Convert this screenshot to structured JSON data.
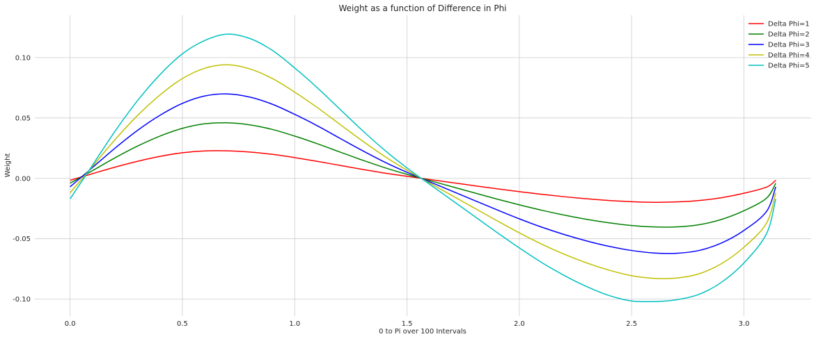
{
  "chart_data": {
    "type": "line",
    "title": "Weight as a function of Difference in Phi",
    "xlabel": "0 to Pi over 100 Intervals",
    "ylabel": "Weight",
    "xlim": [
      -0.157,
      3.299
    ],
    "ylim": [
      -0.114,
      0.135
    ],
    "xticks": [
      0.0,
      0.5,
      1.0,
      1.5,
      2.0,
      2.5,
      3.0
    ],
    "xtick_labels": [
      "0.0",
      "0.5",
      "1.0",
      "1.5",
      "2.0",
      "2.5",
      "3.0"
    ],
    "yticks": [
      -0.1,
      -0.05,
      0.0,
      0.05,
      0.1
    ],
    "ytick_labels": [
      "-0.10",
      "-0.05",
      "0.00",
      "0.05",
      "0.10"
    ],
    "grid": true,
    "legend_position": "top-right",
    "x": [
      0.0,
      0.1,
      0.2,
      0.3,
      0.4,
      0.5,
      0.6,
      0.7,
      0.8,
      0.9,
      1.0,
      1.1,
      1.2,
      1.3,
      1.4,
      1.5,
      1.6,
      1.7,
      1.8,
      1.9,
      2.0,
      2.1,
      2.2,
      2.3,
      2.4,
      2.5,
      2.6,
      2.7,
      2.8,
      2.9,
      3.0,
      3.1,
      3.1416
    ],
    "series": [
      {
        "name": "Delta Phi=1",
        "color": "#ff0000",
        "values": [
          -0.0016,
          0.0039,
          0.0093,
          0.0141,
          0.0182,
          0.0212,
          0.0227,
          0.0228,
          0.0218,
          0.0199,
          0.0172,
          0.0141,
          0.0108,
          0.0075,
          0.0044,
          0.0017,
          -0.0009,
          -0.0035,
          -0.0061,
          -0.0086,
          -0.011,
          -0.0132,
          -0.0152,
          -0.0169,
          -0.0183,
          -0.0193,
          -0.0198,
          -0.0195,
          -0.0183,
          -0.016,
          -0.0123,
          -0.0073,
          -0.0016
        ]
      },
      {
        "name": "Delta Phi=2",
        "color": "#008000",
        "values": [
          -0.004,
          0.0064,
          0.017,
          0.0267,
          0.035,
          0.0414,
          0.0452,
          0.046,
          0.0443,
          0.0405,
          0.035,
          0.0287,
          0.0219,
          0.0152,
          0.0089,
          0.0033,
          -0.0018,
          -0.0069,
          -0.012,
          -0.0171,
          -0.0219,
          -0.0264,
          -0.0304,
          -0.0339,
          -0.0368,
          -0.039,
          -0.0402,
          -0.0402,
          -0.0384,
          -0.034,
          -0.0268,
          -0.0165,
          -0.004
        ]
      },
      {
        "name": "Delta Phi=3",
        "color": "#0000ff",
        "values": [
          -0.007,
          0.009,
          0.025,
          0.0397,
          0.0522,
          0.0621,
          0.0682,
          0.0699,
          0.0673,
          0.0614,
          0.053,
          0.0436,
          0.0333,
          0.0231,
          0.0135,
          0.005,
          -0.0028,
          -0.0105,
          -0.0183,
          -0.026,
          -0.0335,
          -0.0404,
          -0.0465,
          -0.0518,
          -0.0563,
          -0.0597,
          -0.0618,
          -0.062,
          -0.0597,
          -0.0535,
          -0.0431,
          -0.0275,
          -0.007
        ]
      },
      {
        "name": "Delta Phi=4",
        "color": "#bfbf00",
        "values": [
          -0.012,
          0.01,
          0.032,
          0.052,
          0.069,
          0.0826,
          0.0912,
          0.094,
          0.0906,
          0.0827,
          0.0714,
          0.0587,
          0.0449,
          0.0312,
          0.0183,
          0.0067,
          -0.0038,
          -0.0142,
          -0.0246,
          -0.035,
          -0.0451,
          -0.0545,
          -0.0628,
          -0.07,
          -0.076,
          -0.0806,
          -0.0828,
          -0.0825,
          -0.079,
          -0.0706,
          -0.057,
          -0.0372,
          -0.012
        ]
      },
      {
        "name": "Delta Phi=5",
        "color": "#00bfbf",
        "values": [
          -0.017,
          0.011,
          0.039,
          0.0643,
          0.0858,
          0.1031,
          0.1142,
          0.1194,
          0.1158,
          0.106,
          0.0914,
          0.0751,
          0.0575,
          0.0399,
          0.0234,
          0.0086,
          -0.0048,
          -0.0181,
          -0.0314,
          -0.0447,
          -0.0576,
          -0.0697,
          -0.0804,
          -0.0896,
          -0.097,
          -0.1015,
          -0.102,
          -0.1005,
          -0.096,
          -0.086,
          -0.07,
          -0.046,
          -0.017
        ]
      }
    ]
  }
}
